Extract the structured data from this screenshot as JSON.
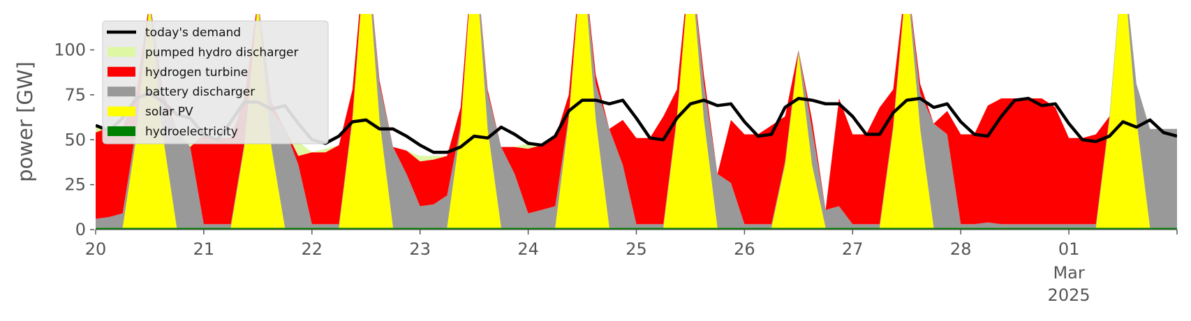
{
  "chart_data": {
    "type": "area",
    "ylabel": "power [GW]",
    "ylim": [
      0,
      120
    ],
    "xlim": [
      "2025-02-20",
      "2025-03-02"
    ],
    "y_ticks": [
      0,
      25,
      50,
      75,
      100
    ],
    "x_ticks": [
      {
        "date": "2025-02-20",
        "label": "20"
      },
      {
        "date": "2025-02-21",
        "label": "21"
      },
      {
        "date": "2025-02-22",
        "label": "22"
      },
      {
        "date": "2025-02-23",
        "label": "23"
      },
      {
        "date": "2025-02-24",
        "label": "24"
      },
      {
        "date": "2025-02-25",
        "label": "25"
      },
      {
        "date": "2025-02-26",
        "label": "26"
      },
      {
        "date": "2025-02-27",
        "label": "27"
      },
      {
        "date": "2025-02-28",
        "label": "28"
      },
      {
        "date": "2025-03-01",
        "label": "01",
        "sublabels": [
          "Mar",
          "2025"
        ]
      }
    ],
    "x": [
      "2025-02-20 00:00",
      "2025-02-20 03:00",
      "2025-02-20 06:00",
      "2025-02-20 09:00",
      "2025-02-20 12:00",
      "2025-02-20 15:00",
      "2025-02-20 18:00",
      "2025-02-20 21:00",
      "2025-02-21 00:00",
      "2025-02-21 03:00",
      "2025-02-21 06:00",
      "2025-02-21 09:00",
      "2025-02-21 12:00",
      "2025-02-21 15:00",
      "2025-02-21 18:00",
      "2025-02-21 21:00",
      "2025-02-22 00:00",
      "2025-02-22 03:00",
      "2025-02-22 06:00",
      "2025-02-22 09:00",
      "2025-02-22 12:00",
      "2025-02-22 15:00",
      "2025-02-22 18:00",
      "2025-02-22 21:00",
      "2025-02-23 00:00",
      "2025-02-23 03:00",
      "2025-02-23 06:00",
      "2025-02-23 09:00",
      "2025-02-23 12:00",
      "2025-02-23 15:00",
      "2025-02-23 18:00",
      "2025-02-23 21:00",
      "2025-02-24 00:00",
      "2025-02-24 03:00",
      "2025-02-24 06:00",
      "2025-02-24 09:00",
      "2025-02-24 12:00",
      "2025-02-24 15:00",
      "2025-02-24 18:00",
      "2025-02-24 21:00",
      "2025-02-25 00:00",
      "2025-02-25 03:00",
      "2025-02-25 06:00",
      "2025-02-25 09:00",
      "2025-02-25 12:00",
      "2025-02-25 15:00",
      "2025-02-25 18:00",
      "2025-02-25 21:00",
      "2025-02-26 00:00",
      "2025-02-26 03:00",
      "2025-02-26 06:00",
      "2025-02-26 09:00",
      "2025-02-26 12:00",
      "2025-02-26 15:00",
      "2025-02-26 18:00",
      "2025-02-26 21:00",
      "2025-02-27 00:00",
      "2025-02-27 03:00",
      "2025-02-27 06:00",
      "2025-02-27 09:00",
      "2025-02-27 12:00",
      "2025-02-27 15:00",
      "2025-02-27 18:00",
      "2025-02-27 21:00",
      "2025-02-28 00:00",
      "2025-02-28 03:00",
      "2025-02-28 06:00",
      "2025-02-28 09:00",
      "2025-02-28 12:00",
      "2025-02-28 15:00",
      "2025-02-28 18:00",
      "2025-02-28 21:00",
      "2025-03-01 00:00",
      "2025-03-01 03:00",
      "2025-03-01 06:00",
      "2025-03-01 09:00",
      "2025-03-01 12:00",
      "2025-03-01 15:00",
      "2025-03-01 18:00",
      "2025-03-01 21:00",
      "2025-03-02 00:00"
    ],
    "series": [
      {
        "name": "hydroelectricity",
        "color": "#008000",
        "values": [
          1,
          1,
          1,
          1,
          1,
          1,
          1,
          1,
          1,
          1,
          1,
          1,
          1,
          1,
          1,
          1,
          1,
          1,
          1,
          1,
          1,
          1,
          1,
          1,
          1,
          1,
          1,
          1,
          1,
          1,
          1,
          1,
          1,
          1,
          1,
          1,
          1,
          1,
          1,
          1,
          1,
          1,
          1,
          1,
          1,
          1,
          1,
          1,
          1,
          1,
          1,
          1,
          1,
          1,
          1,
          1,
          1,
          1,
          1,
          1,
          1,
          1,
          1,
          1,
          1,
          1,
          1,
          1,
          1,
          1,
          1,
          1,
          1,
          1,
          1,
          1,
          1,
          1,
          1,
          1,
          1
        ]
      },
      {
        "name": "solar PV",
        "color": "#ffff00",
        "values": [
          0,
          0,
          0,
          50,
          125,
          50,
          0,
          0,
          0,
          0,
          0,
          45,
          125,
          45,
          0,
          0,
          0,
          0,
          0,
          60,
          160,
          60,
          0,
          0,
          0,
          0,
          0,
          55,
          160,
          55,
          0,
          0,
          0,
          0,
          0,
          60,
          155,
          60,
          0,
          0,
          0,
          0,
          0,
          60,
          150,
          60,
          0,
          0,
          0,
          0,
          0,
          35,
          97,
          35,
          0,
          0,
          0,
          0,
          0,
          55,
          140,
          55,
          0,
          0,
          0,
          0,
          0,
          0,
          0,
          0,
          0,
          0,
          0,
          0,
          0,
          60,
          150,
          60,
          0,
          0,
          0
        ]
      },
      {
        "name": "battery discharger",
        "color": "#999999",
        "values": [
          5,
          6,
          8,
          5,
          2,
          20,
          55,
          45,
          2,
          2,
          2,
          2,
          2,
          20,
          55,
          35,
          2,
          2,
          2,
          2,
          2,
          20,
          45,
          30,
          12,
          13,
          18,
          2,
          2,
          20,
          45,
          30,
          8,
          10,
          12,
          2,
          2,
          20,
          55,
          35,
          2,
          2,
          2,
          2,
          2,
          20,
          30,
          25,
          2,
          2,
          2,
          2,
          2,
          20,
          10,
          12,
          2,
          2,
          2,
          2,
          2,
          20,
          58,
          52,
          2,
          2,
          3,
          2,
          2,
          2,
          2,
          2,
          2,
          2,
          2,
          2,
          2,
          20,
          55,
          55,
          55
        ]
      },
      {
        "name": "hydrogen turbine",
        "color": "#ff0000",
        "values": [
          48,
          50,
          48,
          20,
          0,
          5,
          0,
          0,
          50,
          48,
          48,
          25,
          0,
          5,
          0,
          5,
          40,
          40,
          44,
          15,
          0,
          2,
          0,
          13,
          25,
          25,
          22,
          10,
          0,
          2,
          0,
          15,
          36,
          36,
          38,
          12,
          0,
          5,
          0,
          25,
          48,
          48,
          60,
          15,
          0,
          5,
          0,
          35,
          50,
          50,
          55,
          25,
          0,
          5,
          0,
          60,
          50,
          50,
          65,
          20,
          0,
          5,
          0,
          13,
          50,
          50,
          65,
          70,
          70,
          70,
          70,
          65,
          48,
          48,
          50,
          0,
          0,
          0,
          0,
          0,
          0
        ]
      },
      {
        "name": "pumped hydro discharger",
        "color": "#ddf7a3",
        "values": [
          4,
          0,
          0,
          5,
          0,
          0,
          0,
          6,
          0,
          0,
          0,
          0,
          0,
          0,
          0,
          8,
          0,
          2,
          0,
          0,
          0,
          0,
          0,
          0,
          3,
          2,
          0,
          0,
          0,
          0,
          0,
          0,
          3,
          0,
          0,
          0,
          0,
          0,
          0,
          0,
          0,
          0,
          0,
          0,
          0,
          0,
          0,
          0,
          0,
          0,
          0,
          0,
          0,
          0,
          0,
          0,
          0,
          0,
          0,
          0,
          0,
          0,
          0,
          0,
          0,
          0,
          0,
          0,
          0,
          0,
          0,
          0,
          0,
          0,
          0,
          0,
          0,
          0,
          0,
          0,
          0
        ]
      },
      {
        "name": "today's demand",
        "color": "#000000",
        "line": true,
        "values": [
          58,
          55,
          62,
          73,
          76,
          71,
          64,
          62,
          53,
          50,
          60,
          71,
          71,
          67,
          69,
          59,
          50,
          48,
          52,
          60,
          61,
          56,
          56,
          52,
          47,
          43,
          43,
          46,
          52,
          51,
          57,
          53,
          48,
          47,
          52,
          66,
          72,
          72,
          70,
          72,
          62,
          51,
          50,
          62,
          70,
          72,
          69,
          70,
          60,
          52,
          53,
          68,
          73,
          72,
          70,
          70,
          63,
          53,
          53,
          65,
          72,
          73,
          68,
          70,
          60,
          53,
          52,
          63,
          72,
          73,
          69,
          70,
          59,
          50,
          49,
          52,
          60,
          57,
          61,
          54,
          52
        ]
      }
    ],
    "legend": {
      "placement": "top-left",
      "order": [
        "today's demand",
        "pumped hydro discharger",
        "hydrogen turbine",
        "battery discharger",
        "solar PV",
        "hydroelectricity"
      ]
    },
    "grid": false
  }
}
